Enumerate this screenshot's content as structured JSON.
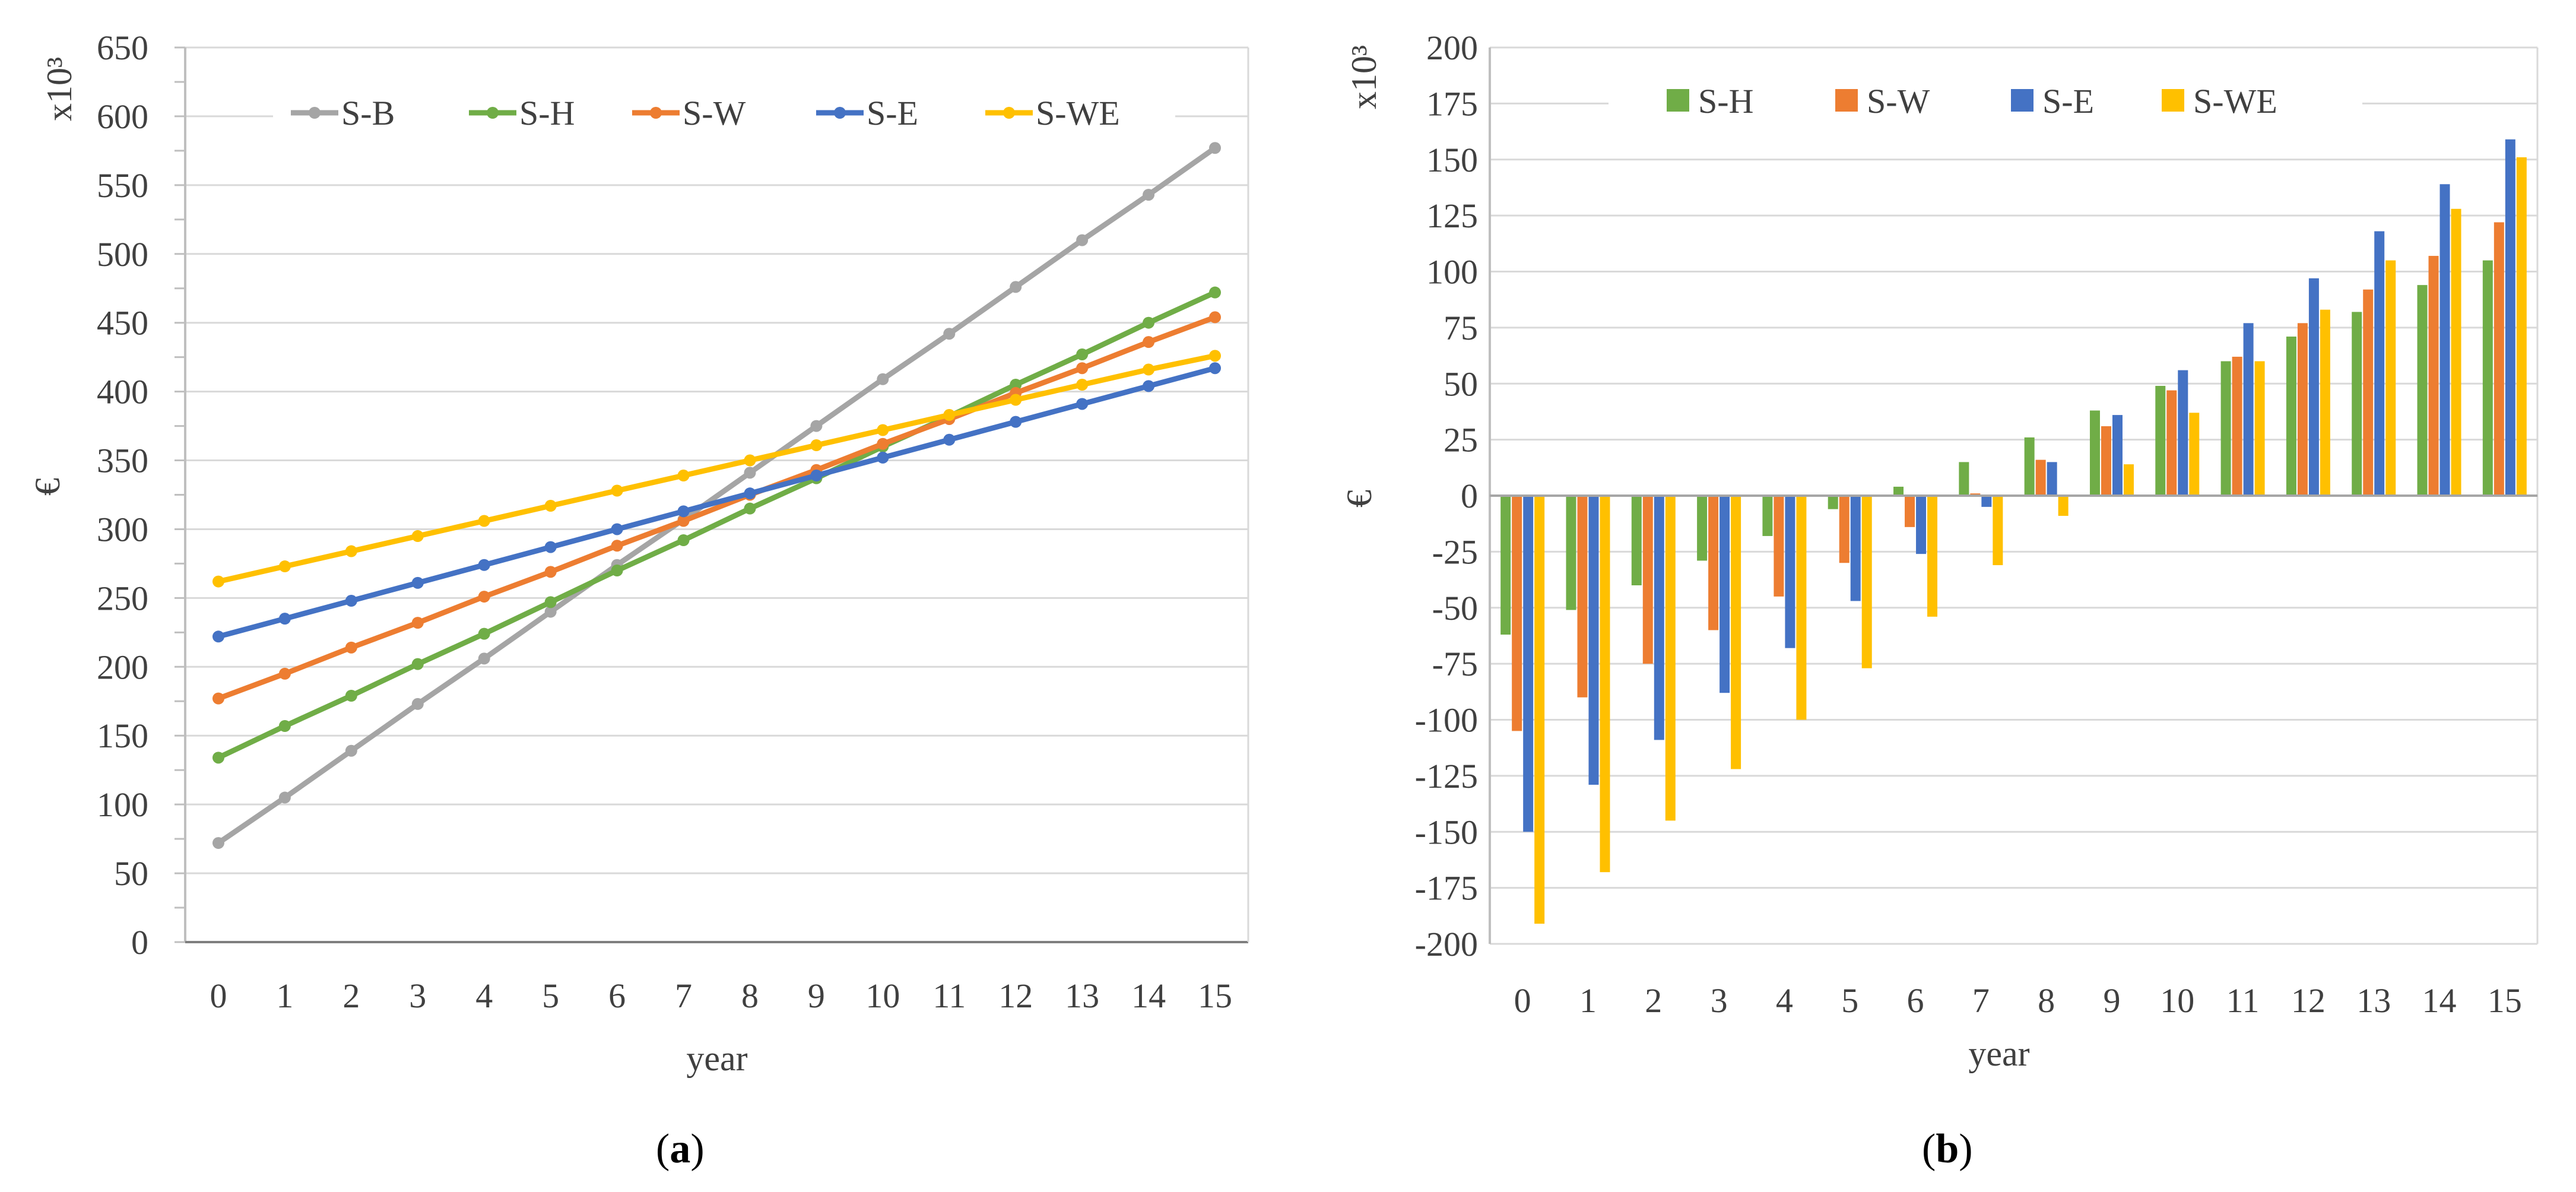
{
  "chart_data": [
    {
      "type": "line",
      "panel_label": "(a)",
      "panel_letter": "a",
      "xlabel": "year",
      "ylabel": "€",
      "yunit": "x10³",
      "ylim": [
        0,
        650
      ],
      "ystep": 50,
      "x": [
        0,
        1,
        2,
        3,
        4,
        5,
        6,
        7,
        8,
        9,
        10,
        11,
        12,
        13,
        14,
        15
      ],
      "legend_position": "top",
      "grid": true,
      "series": [
        {
          "name": "S-B",
          "color": "#A5A5A5",
          "values": [
            72,
            105,
            139,
            173,
            206,
            240,
            274,
            307,
            341,
            375,
            409,
            442,
            476,
            510,
            543,
            577
          ]
        },
        {
          "name": "S-H",
          "color": "#70AD47",
          "values": [
            134,
            157,
            179,
            202,
            224,
            247,
            270,
            292,
            315,
            337,
            360,
            382,
            405,
            427,
            450,
            472
          ]
        },
        {
          "name": "S-W",
          "color": "#ED7D31",
          "values": [
            177,
            195,
            214,
            232,
            251,
            269,
            288,
            306,
            325,
            343,
            362,
            380,
            399,
            417,
            436,
            454
          ]
        },
        {
          "name": "S-E",
          "color": "#4472C4",
          "values": [
            222,
            235,
            248,
            261,
            274,
            287,
            300,
            313,
            326,
            339,
            352,
            365,
            378,
            391,
            404,
            417
          ]
        },
        {
          "name": "S-WE",
          "color": "#FFC000",
          "values": [
            262,
            273,
            284,
            295,
            306,
            317,
            328,
            339,
            350,
            361,
            372,
            383,
            394,
            405,
            416,
            426
          ]
        }
      ]
    },
    {
      "type": "bar",
      "panel_label": "(b)",
      "panel_letter": "b",
      "xlabel": "year",
      "ylabel": "€",
      "yunit": "x10³",
      "ylim": [
        -200,
        200
      ],
      "ystep": 25,
      "categories": [
        "0",
        "1",
        "2",
        "3",
        "4",
        "5",
        "6",
        "7",
        "8",
        "9",
        "10",
        "11",
        "12",
        "13",
        "14",
        "15"
      ],
      "legend_position": "top",
      "grid": true,
      "series": [
        {
          "name": "S-H",
          "color": "#70AD47",
          "values": [
            -62,
            -51,
            -40,
            -29,
            -18,
            -6,
            4,
            15,
            26,
            38,
            49,
            60,
            71,
            82,
            94,
            105
          ]
        },
        {
          "name": "S-W",
          "color": "#ED7D31",
          "values": [
            -105,
            -90,
            -75,
            -60,
            -45,
            -30,
            -14,
            1,
            16,
            31,
            47,
            62,
            77,
            92,
            107,
            122
          ]
        },
        {
          "name": "S-E",
          "color": "#4472C4",
          "values": [
            -150,
            -129,
            -109,
            -88,
            -68,
            -47,
            -26,
            -5,
            15,
            36,
            56,
            77,
            97,
            118,
            139,
            159
          ]
        },
        {
          "name": "S-WE",
          "color": "#FFC000",
          "values": [
            -191,
            -168,
            -145,
            -122,
            -100,
            -77,
            -54,
            -31,
            -9,
            14,
            37,
            60,
            83,
            105,
            128,
            151
          ]
        }
      ]
    }
  ]
}
